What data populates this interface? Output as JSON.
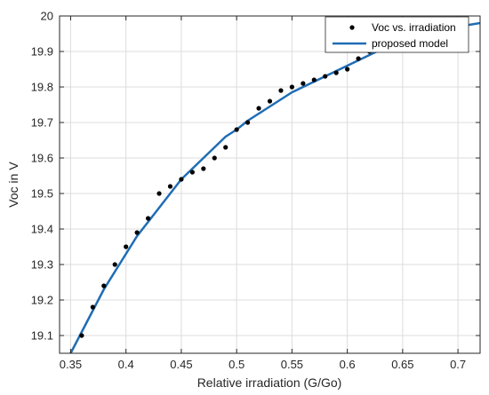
{
  "chart_data": {
    "type": "scatter",
    "xlabel": "Relative irradiation (G/Go)",
    "ylabel": "Voc in V",
    "xlim": [
      0.34,
      0.72
    ],
    "ylim": [
      19.05,
      20.0
    ],
    "xticks": [
      0.35,
      0.4,
      0.45,
      0.5,
      0.55,
      0.6,
      0.65,
      0.7
    ],
    "yticks": [
      19.1,
      19.2,
      19.3,
      19.4,
      19.5,
      19.6,
      19.7,
      19.8,
      19.9,
      20
    ],
    "xtick_labels": [
      "0.35",
      "0.4",
      "0.45",
      "0.5",
      "0.55",
      "0.6",
      "0.65",
      "0.7"
    ],
    "ytick_labels": [
      "19.1",
      "19.2",
      "19.3",
      "19.4",
      "19.5",
      "19.6",
      "19.7",
      "19.8",
      "19.9",
      "20"
    ],
    "grid": true,
    "legend_position": "top-right",
    "series": [
      {
        "name": "Voc vs. irradiation",
        "kind": "points",
        "color": "#000000",
        "x": [
          0.36,
          0.37,
          0.38,
          0.39,
          0.4,
          0.41,
          0.42,
          0.43,
          0.44,
          0.45,
          0.46,
          0.47,
          0.48,
          0.49,
          0.5,
          0.51,
          0.52,
          0.53,
          0.54,
          0.55,
          0.56,
          0.57,
          0.58,
          0.59,
          0.6,
          0.61,
          0.62
        ],
        "y": [
          19.1,
          19.18,
          19.24,
          19.3,
          19.35,
          19.39,
          19.43,
          19.5,
          19.52,
          19.54,
          19.56,
          19.57,
          19.6,
          19.63,
          19.68,
          19.7,
          19.74,
          19.76,
          19.79,
          19.8,
          19.81,
          19.82,
          19.83,
          19.84,
          19.85,
          19.88,
          19.9
        ]
      },
      {
        "name": "proposed model",
        "kind": "line",
        "color": "#1f6db4",
        "x": [
          0.34,
          0.35,
          0.36,
          0.37,
          0.38,
          0.39,
          0.4,
          0.41,
          0.42,
          0.43,
          0.44,
          0.45,
          0.46,
          0.47,
          0.48,
          0.49,
          0.5,
          0.51,
          0.52,
          0.53,
          0.54,
          0.55,
          0.56,
          0.57,
          0.58,
          0.59,
          0.6,
          0.61,
          0.62,
          0.63,
          0.64,
          0.65,
          0.66,
          0.67,
          0.68,
          0.69,
          0.7,
          0.71,
          0.72
        ],
        "y": [
          18.99,
          19.05,
          19.11,
          19.17,
          19.23,
          19.28,
          19.33,
          19.38,
          19.42,
          19.46,
          19.5,
          19.54,
          19.57,
          19.6,
          19.63,
          19.66,
          19.68,
          19.705,
          19.725,
          19.745,
          19.765,
          19.785,
          19.8,
          19.815,
          19.83,
          19.845,
          19.86,
          19.875,
          19.89,
          19.905,
          19.92,
          19.93,
          19.94,
          19.95,
          19.96,
          19.965,
          19.97,
          19.975,
          19.98
        ]
      }
    ]
  }
}
